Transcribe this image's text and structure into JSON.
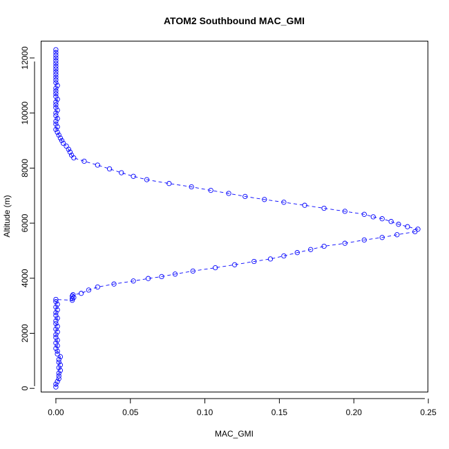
{
  "chart_data": {
    "type": "scatter",
    "title": "ATOM2 Southbound MAC_GMI",
    "xlabel": "MAC_GMI",
    "ylabel": "Altitude (m)",
    "xlim": [
      -0.0097,
      0.2495
    ],
    "ylim": [
      -120,
      12600
    ],
    "x_ticks": [
      0,
      0.05,
      0.1,
      0.15,
      0.2,
      0.25
    ],
    "x_tick_labels": [
      "0.00",
      "0.05",
      "0.10",
      "0.15",
      "0.20",
      "0.25"
    ],
    "y_ticks": [
      0,
      2000,
      4000,
      6000,
      8000,
      10000,
      12000
    ],
    "y_tick_labels": [
      "0",
      "2000",
      "4000",
      "6000",
      "8000",
      "10000",
      "12000"
    ],
    "grid": false,
    "legend": "none",
    "colors": {
      "series": "#0000ff",
      "axes": "#000000"
    },
    "series": [
      {
        "style": "points-and-dashed-line",
        "points": [
          [
            0.0,
            50
          ],
          [
            0.0,
            150
          ],
          [
            0.001,
            250
          ],
          [
            0.002,
            350
          ],
          [
            0.002,
            450
          ],
          [
            0.002,
            550
          ],
          [
            0.003,
            650
          ],
          [
            0.002,
            750
          ],
          [
            0.003,
            850
          ],
          [
            0.002,
            950
          ],
          [
            0.002,
            1050
          ],
          [
            0.003,
            1150
          ],
          [
            0.001,
            1250
          ],
          [
            0.001,
            1350
          ],
          [
            0.0,
            1450
          ],
          [
            0.001,
            1550
          ],
          [
            0.0,
            1650
          ],
          [
            0.001,
            1750
          ],
          [
            0.0,
            1850
          ],
          [
            0.0,
            1950
          ],
          [
            0.001,
            2050
          ],
          [
            0.0,
            2150
          ],
          [
            0.001,
            2250
          ],
          [
            0.0,
            2350
          ],
          [
            0.0,
            2450
          ],
          [
            0.001,
            2550
          ],
          [
            0.0,
            2650
          ],
          [
            0.0,
            2750
          ],
          [
            0.001,
            2850
          ],
          [
            0.0,
            2950
          ],
          [
            0.001,
            3050
          ],
          [
            0.0,
            3150
          ],
          [
            0.0,
            3230
          ],
          [
            0.011,
            3200
          ],
          [
            0.011,
            3260
          ],
          [
            0.012,
            3300
          ],
          [
            0.011,
            3350
          ],
          [
            0.0115,
            3400
          ],
          [
            0.017,
            3450
          ],
          [
            0.022,
            3570
          ],
          [
            0.028,
            3680
          ],
          [
            0.039,
            3790
          ],
          [
            0.052,
            3900
          ],
          [
            0.062,
            3990
          ],
          [
            0.071,
            4060
          ],
          [
            0.08,
            4150
          ],
          [
            0.092,
            4260
          ],
          [
            0.107,
            4380
          ],
          [
            0.12,
            4490
          ],
          [
            0.133,
            4610
          ],
          [
            0.144,
            4700
          ],
          [
            0.153,
            4810
          ],
          [
            0.162,
            4930
          ],
          [
            0.171,
            5040
          ],
          [
            0.18,
            5160
          ],
          [
            0.194,
            5270
          ],
          [
            0.207,
            5390
          ],
          [
            0.219,
            5480
          ],
          [
            0.229,
            5580
          ],
          [
            0.241,
            5690
          ],
          [
            0.243,
            5780
          ],
          [
            0.236,
            5870
          ],
          [
            0.23,
            5960
          ],
          [
            0.225,
            6060
          ],
          [
            0.219,
            6160
          ],
          [
            0.213,
            6230
          ],
          [
            0.207,
            6320
          ],
          [
            0.194,
            6430
          ],
          [
            0.18,
            6540
          ],
          [
            0.167,
            6650
          ],
          [
            0.153,
            6760
          ],
          [
            0.14,
            6860
          ],
          [
            0.127,
            6970
          ],
          [
            0.116,
            7080
          ],
          [
            0.104,
            7190
          ],
          [
            0.091,
            7320
          ],
          [
            0.076,
            7440
          ],
          [
            0.061,
            7580
          ],
          [
            0.052,
            7700
          ],
          [
            0.044,
            7830
          ],
          [
            0.036,
            7970
          ],
          [
            0.028,
            8110
          ],
          [
            0.019,
            8250
          ],
          [
            0.012,
            8370
          ],
          [
            0.0105,
            8470
          ],
          [
            0.0095,
            8580
          ],
          [
            0.0085,
            8680
          ],
          [
            0.007,
            8800
          ],
          [
            0.005,
            8900
          ],
          [
            0.004,
            9000
          ],
          [
            0.003,
            9090
          ],
          [
            0.002,
            9200
          ],
          [
            0.001,
            9300
          ],
          [
            0.0,
            9400
          ],
          [
            0.001,
            9500
          ],
          [
            0.0,
            9600
          ],
          [
            0.0,
            9700
          ],
          [
            0.001,
            9800
          ],
          [
            0.0,
            9900
          ],
          [
            0.0,
            10000
          ],
          [
            0.001,
            10100
          ],
          [
            0.0,
            10200
          ],
          [
            0.0,
            10300
          ],
          [
            0.0,
            10400
          ],
          [
            0.001,
            10500
          ],
          [
            0.0,
            10600
          ],
          [
            0.0,
            10700
          ],
          [
            0.0,
            10800
          ],
          [
            0.0,
            10900
          ],
          [
            0.001,
            11000
          ],
          [
            0.0,
            11100
          ],
          [
            0.0,
            11200
          ],
          [
            0.0,
            11300
          ],
          [
            0.0,
            11400
          ],
          [
            0.0,
            11500
          ],
          [
            0.0,
            11600
          ],
          [
            0.0,
            11700
          ],
          [
            0.0,
            11800
          ],
          [
            0.0,
            11900
          ],
          [
            0.0,
            12000
          ],
          [
            0.0,
            12100
          ],
          [
            0.0,
            12200
          ],
          [
            0.0,
            12300
          ]
        ]
      }
    ]
  }
}
